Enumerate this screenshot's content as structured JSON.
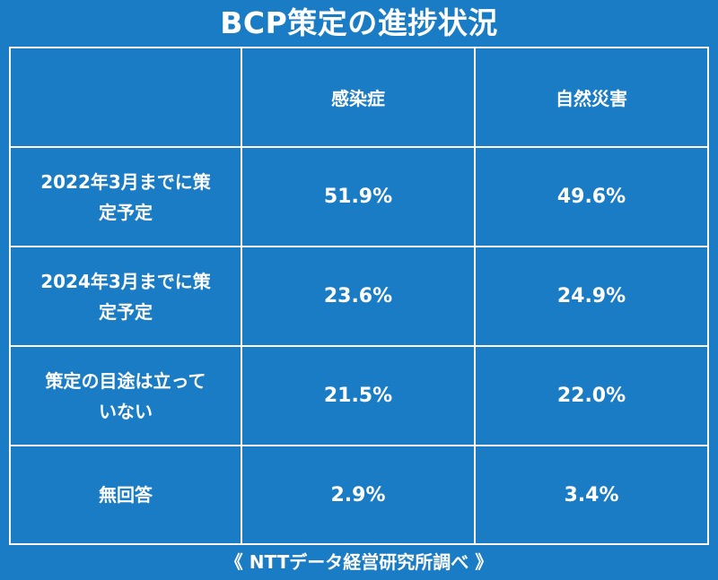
{
  "chart_data": {
    "type": "table",
    "title": "BCP策定の進捗状況",
    "columns": [
      "感染症",
      "自然災害"
    ],
    "rows": [
      {
        "label": "2022年3月までに策定予定",
        "values": [
          "51.9%",
          "49.6%"
        ]
      },
      {
        "label": "2024年3月までに策定予定",
        "values": [
          "23.6%",
          "24.9%"
        ]
      },
      {
        "label": "策定の目途は立っていない",
        "values": [
          "21.5%",
          "22.0%"
        ]
      },
      {
        "label": "無回答",
        "values": [
          "2.9%",
          "3.4%"
        ]
      }
    ],
    "source": "《 NTTデータ経営研究所調べ 》"
  }
}
